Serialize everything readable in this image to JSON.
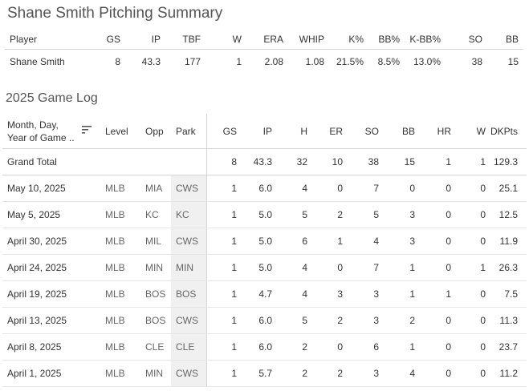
{
  "title": "Shane Smith Pitching Summary",
  "summary": {
    "headers": [
      "Player",
      "GS",
      "IP",
      "TBF",
      "W",
      "ERA",
      "WHIP",
      "K%",
      "BB%",
      "K-BB%",
      "SO",
      "BB"
    ],
    "row": [
      "Shane Smith",
      "8",
      "43.3",
      "177",
      "1",
      "2.08",
      "1.08",
      "21.5%",
      "8.5%",
      "13.0%",
      "38",
      "15"
    ]
  },
  "gamelog": {
    "title": "2025 Game Log",
    "headers": {
      "date_line1": "Month, Day,",
      "date_line2": "Year of Game ..",
      "level": "Level",
      "opp": "Opp",
      "park": "Park",
      "gs": "GS",
      "ip": "IP",
      "h": "H",
      "er": "ER",
      "so": "SO",
      "bb": "BB",
      "hr": "HR",
      "w": "W",
      "dkpts": "DKPts"
    },
    "grand_total": {
      "label": "Grand Total",
      "gs": "8",
      "ip": "43.3",
      "h": "32",
      "er": "10",
      "so": "38",
      "bb": "15",
      "hr": "1",
      "w": "1",
      "dkpts": "129.3"
    },
    "rows": [
      {
        "date": "May 10, 2025",
        "level": "MLB",
        "opp": "MIA",
        "park": "CWS",
        "gs": "1",
        "ip": "6.0",
        "h": "4",
        "er": "0",
        "so": "7",
        "bb": "0",
        "hr": "0",
        "w": "0",
        "dkpts": "25.1"
      },
      {
        "date": "May 5, 2025",
        "level": "MLB",
        "opp": "KC",
        "park": "KC",
        "gs": "1",
        "ip": "5.0",
        "h": "5",
        "er": "2",
        "so": "5",
        "bb": "3",
        "hr": "0",
        "w": "0",
        "dkpts": "12.5"
      },
      {
        "date": "April 30, 2025",
        "level": "MLB",
        "opp": "MIL",
        "park": "CWS",
        "gs": "1",
        "ip": "5.0",
        "h": "6",
        "er": "1",
        "so": "4",
        "bb": "3",
        "hr": "0",
        "w": "0",
        "dkpts": "11.9"
      },
      {
        "date": "April 24, 2025",
        "level": "MLB",
        "opp": "MIN",
        "park": "MIN",
        "gs": "1",
        "ip": "5.0",
        "h": "4",
        "er": "0",
        "so": "7",
        "bb": "1",
        "hr": "0",
        "w": "1",
        "dkpts": "26.3"
      },
      {
        "date": "April 19, 2025",
        "level": "MLB",
        "opp": "BOS",
        "park": "BOS",
        "gs": "1",
        "ip": "4.7",
        "h": "4",
        "er": "3",
        "so": "3",
        "bb": "1",
        "hr": "1",
        "w": "0",
        "dkpts": "7.5"
      },
      {
        "date": "April 13, 2025",
        "level": "MLB",
        "opp": "BOS",
        "park": "CWS",
        "gs": "1",
        "ip": "6.0",
        "h": "5",
        "er": "2",
        "so": "3",
        "bb": "2",
        "hr": "0",
        "w": "0",
        "dkpts": "11.3"
      },
      {
        "date": "April 8, 2025",
        "level": "MLB",
        "opp": "CLE",
        "park": "CLE",
        "gs": "1",
        "ip": "6.0",
        "h": "2",
        "er": "0",
        "so": "6",
        "bb": "1",
        "hr": "0",
        "w": "0",
        "dkpts": "23.7"
      },
      {
        "date": "April 1, 2025",
        "level": "MLB",
        "opp": "MIN",
        "park": "CWS",
        "gs": "1",
        "ip": "5.7",
        "h": "2",
        "er": "2",
        "so": "3",
        "bb": "4",
        "hr": "0",
        "w": "0",
        "dkpts": "11.2"
      }
    ]
  },
  "icons": {
    "sort": "sort-descending-icon"
  },
  "colors": {
    "park_shade": "#f0f0f0",
    "grid": "#d4d4d4",
    "text": "#333333",
    "title": "#555555"
  }
}
